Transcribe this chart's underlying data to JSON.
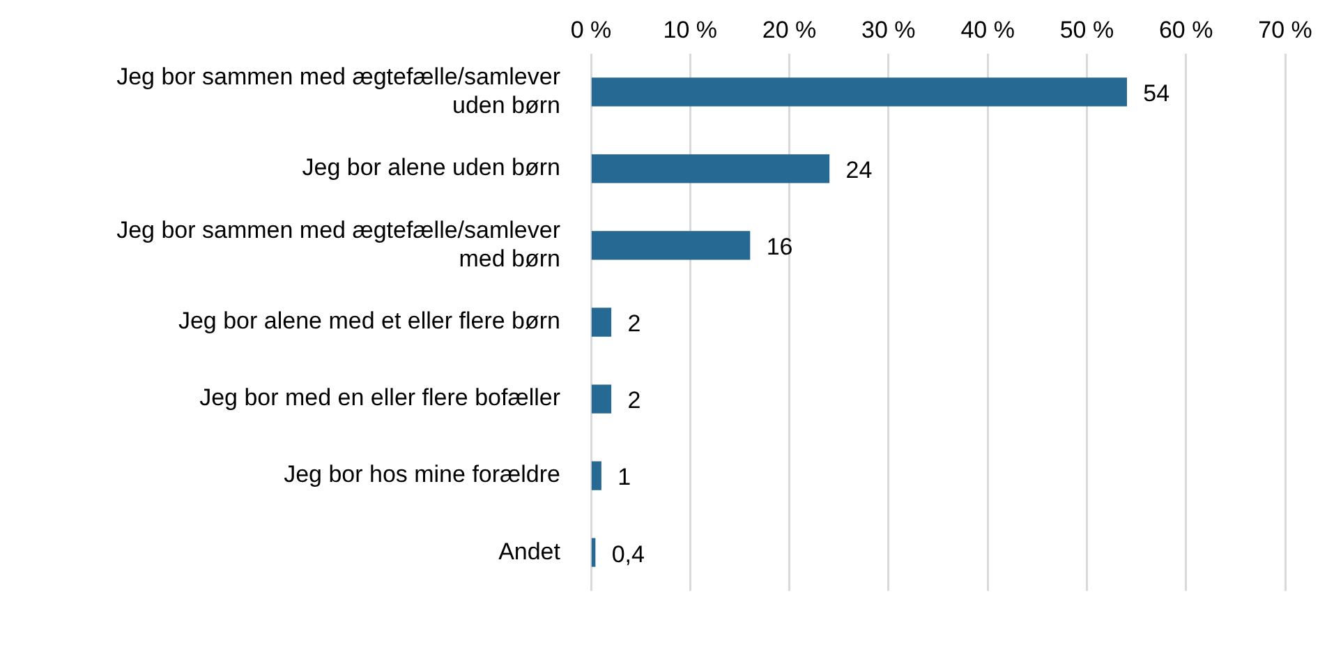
{
  "chart_data": {
    "type": "bar",
    "orientation": "horizontal",
    "categories": [
      "Jeg bor sammen med ægtefælle/samlever uden børn",
      "Jeg bor alene uden børn",
      "Jeg bor sammen med ægtefælle/samlever med børn",
      "Jeg bor alene med et eller flere børn",
      "Jeg bor med en eller flere bofæller",
      "Jeg bor hos mine forældre",
      "Andet"
    ],
    "values": [
      54,
      24,
      16,
      2,
      2,
      1,
      0.4
    ],
    "value_labels": [
      "54",
      "24",
      "16",
      "2",
      "2",
      "1",
      "0,4"
    ],
    "color": "#266a94",
    "xlim": [
      0,
      70
    ],
    "xticks": [
      {
        "value": 0,
        "label": "0 %"
      },
      {
        "value": 10,
        "label": "10 %"
      },
      {
        "value": 20,
        "label": "20 %"
      },
      {
        "value": 30,
        "label": "30 %"
      },
      {
        "value": 40,
        "label": "40 %"
      },
      {
        "value": 50,
        "label": "50 %"
      },
      {
        "value": 60,
        "label": "60 %"
      },
      {
        "value": 70,
        "label": "70 %"
      }
    ],
    "grid": "x",
    "legend": false
  }
}
